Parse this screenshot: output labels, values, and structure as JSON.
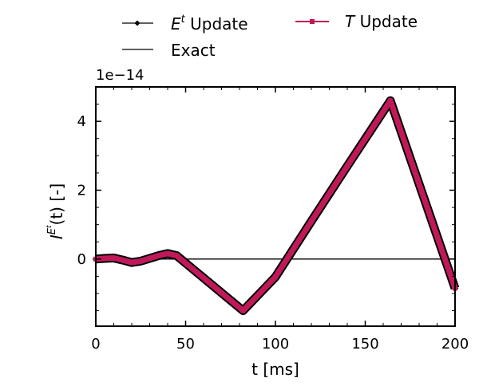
{
  "chart_data": {
    "type": "line",
    "title": "",
    "xlabel": "t [ms]",
    "ylabel": {
      "base": "I",
      "sup": "E",
      "supsup": "t",
      "tail": "(t) [-]"
    },
    "offset_label": "1e−14",
    "xlim": [
      0,
      200
    ],
    "ylim": [
      -1.95,
      5.0
    ],
    "xticks": [
      0,
      50,
      100,
      150,
      200
    ],
    "xtick_labels": [
      "0",
      "50",
      "100",
      "150",
      "200"
    ],
    "yticks": [
      0,
      2,
      4
    ],
    "ytick_labels": [
      "0",
      "2",
      "4"
    ],
    "grid": false,
    "legend_position": "top",
    "legend": [
      {
        "key": "e_update",
        "label_main": "E",
        "label_sup": "t",
        "label_tail": " Update"
      },
      {
        "key": "exact",
        "label_main": "Exact",
        "label_sup": "",
        "label_tail": ""
      },
      {
        "key": "t_update",
        "label_main": "T",
        "label_sup": "",
        "label_tail": " Update"
      }
    ],
    "series": [
      {
        "key": "e_update",
        "color": "#000000",
        "marker": "diamond",
        "x": [
          0,
          5,
          10,
          15,
          20,
          25,
          30,
          35,
          40,
          45,
          82,
          100,
          120,
          140,
          164,
          200
        ],
        "y": [
          0.0,
          0.02,
          0.03,
          -0.03,
          -0.1,
          -0.06,
          0.02,
          0.1,
          0.16,
          0.1,
          -1.5,
          -0.52,
          1.1,
          2.7,
          4.6,
          -0.85
        ]
      },
      {
        "key": "exact",
        "color": "#000000",
        "marker": "none",
        "x": [
          0,
          200
        ],
        "y": [
          0,
          0
        ]
      },
      {
        "key": "t_update",
        "color": "#c0195a",
        "marker": "square",
        "x": [
          0,
          5,
          10,
          15,
          20,
          25,
          30,
          35,
          40,
          45,
          82,
          100,
          120,
          140,
          164,
          200
        ],
        "y": [
          0.0,
          0.02,
          0.03,
          -0.03,
          -0.1,
          -0.06,
          0.02,
          0.1,
          0.16,
          0.1,
          -1.5,
          -0.52,
          1.1,
          2.7,
          4.6,
          -0.85
        ]
      }
    ]
  }
}
